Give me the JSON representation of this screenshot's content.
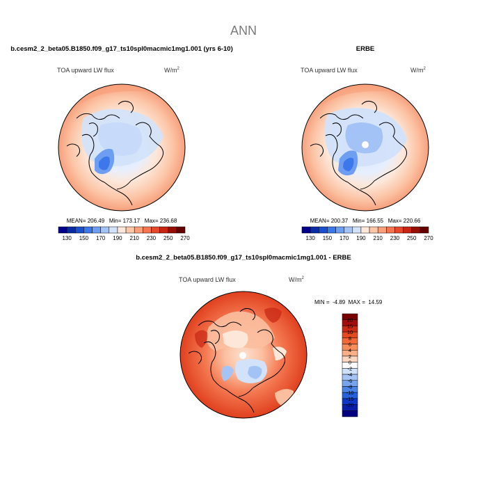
{
  "page_title": "ANN",
  "panels": [
    {
      "heading": "b.cesm2_2_beta05.B1850.f09_g17_ts10spl0macmic1mg1.001 (yrs 6-10)",
      "variable": "TOA upward LW flux",
      "units": "W/m",
      "units_exp": "2",
      "stats_text": "MEAN= 206.49   Min= 173.17   Max= 236.68",
      "colorbar": {
        "colors": [
          "#00008b",
          "#0a2ba8",
          "#1a4fd0",
          "#3c78ea",
          "#6e9ef2",
          "#a3c2f6",
          "#d2e2fa",
          "#fde7d9",
          "#fcc6a8",
          "#f9a07a",
          "#f47550",
          "#e44a2a",
          "#c82512",
          "#960f04",
          "#650000"
        ],
        "labels": [
          "130",
          "150",
          "170",
          "190",
          "210",
          "230",
          "250",
          "270"
        ]
      }
    },
    {
      "heading": "ERBE",
      "variable": "TOA upward LW flux",
      "units": "W/m",
      "units_exp": "2",
      "stats_text": "MEAN= 200.37   Min= 166.55   Max= 220.66",
      "colorbar": {
        "colors": [
          "#00008b",
          "#0a2ba8",
          "#1a4fd0",
          "#3c78ea",
          "#6e9ef2",
          "#a3c2f6",
          "#d2e2fa",
          "#fde7d9",
          "#fcc6a8",
          "#f9a07a",
          "#f47550",
          "#e44a2a",
          "#c82512",
          "#960f04",
          "#650000"
        ],
        "labels": [
          "130",
          "150",
          "170",
          "190",
          "210",
          "230",
          "250",
          "270"
        ]
      }
    },
    {
      "heading": "b.cesm2_2_beta05.B1850.f09_g17_ts10spl0macmic1mg1.001 - ERBE",
      "variable": "TOA upward LW flux",
      "units": "W/m",
      "units_exp": "2",
      "stats_text": "MIN =  -4.89  MAX =  14.59",
      "colorbar": {
        "colors": [
          "#780000",
          "#a50d0d",
          "#cc2a14",
          "#e44a1e",
          "#f36a36",
          "#f88c5c",
          "#fbae88",
          "#fdd5c0",
          "#ffffff",
          "#cfe0fb",
          "#a5c4f5",
          "#78a4ee",
          "#4b83e6",
          "#2762dc",
          "#1038c8",
          "#0a1eaa",
          "#000080"
        ],
        "labels": [
          "20",
          "15",
          "10",
          "8",
          "6",
          "4",
          "2",
          "0",
          "-2",
          "-4",
          "-6",
          "-8",
          "-10",
          "-15",
          "-20"
        ]
      }
    }
  ]
}
